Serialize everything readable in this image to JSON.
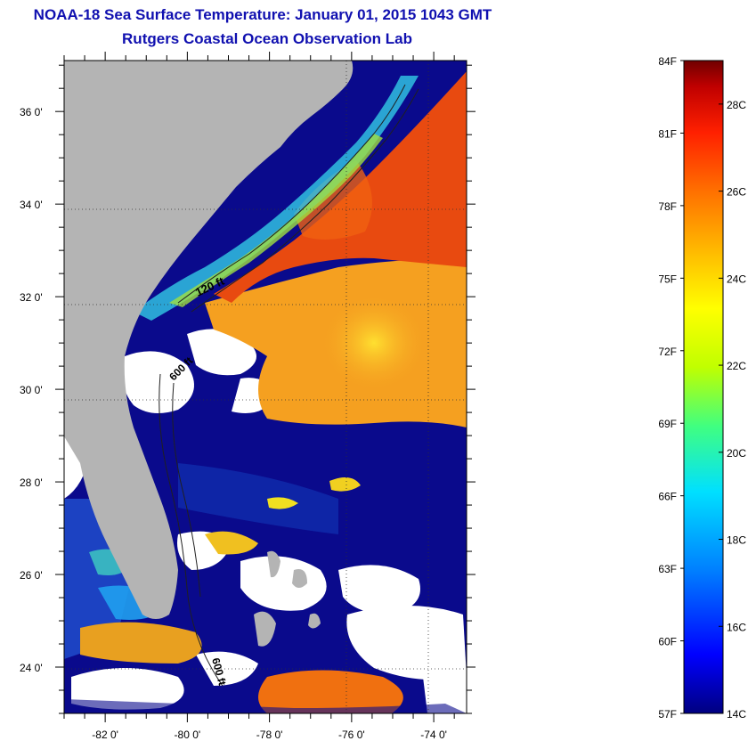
{
  "title": {
    "line1": "NOAA-18 Sea Surface Temperature:  January 01, 2015 1043 GMT",
    "line2": "Rutgers Coastal Ocean Observation Lab"
  },
  "map": {
    "lat_labels": [
      {
        "value": 36,
        "label": "36 0'"
      },
      {
        "value": 34,
        "label": "34 0'"
      },
      {
        "value": 32,
        "label": "32 0'"
      },
      {
        "value": 30,
        "label": "30 0'"
      },
      {
        "value": 28,
        "label": "28 0'"
      },
      {
        "value": 26,
        "label": "26 0'"
      },
      {
        "value": 24,
        "label": "24 0'"
      }
    ],
    "lon_labels": [
      {
        "value": -82,
        "label": "-82 0'"
      },
      {
        "value": -80,
        "label": "-80 0'"
      },
      {
        "value": -78,
        "label": "-78 0'"
      },
      {
        "value": -76,
        "label": "-76 0'"
      },
      {
        "value": -74,
        "label": "-74 0'"
      }
    ],
    "lat_range": [
      23.0,
      37.1
    ],
    "lon_range": [
      -83.0,
      -73.2
    ],
    "isobath_labels": {
      "label_120": "120 ft",
      "label_600a": "600 ft",
      "label_600b": "600 ft"
    },
    "colors": {
      "land": "#b4b4b4",
      "cloud": "#ffffff",
      "cold_water": "#0a0a8c",
      "gulf_stream": "#e84a10",
      "warm_water": "#f5a020"
    }
  },
  "colorbar": {
    "fahrenheit": [
      "84F",
      "81F",
      "78F",
      "75F",
      "72F",
      "69F",
      "66F",
      "63F",
      "60F",
      "57F"
    ],
    "celsius": [
      "28C",
      "26C",
      "24C",
      "22C",
      "20C",
      "18C",
      "16C",
      "14C"
    ],
    "f_range": [
      57,
      84
    ],
    "c_range": [
      14,
      29
    ],
    "gradient": [
      "#000080",
      "#0000ff",
      "#0080ff",
      "#00e0ff",
      "#40ff80",
      "#c0ff00",
      "#ffff00",
      "#ffc000",
      "#ff7000",
      "#ff2000",
      "#c00000",
      "#700000"
    ]
  }
}
